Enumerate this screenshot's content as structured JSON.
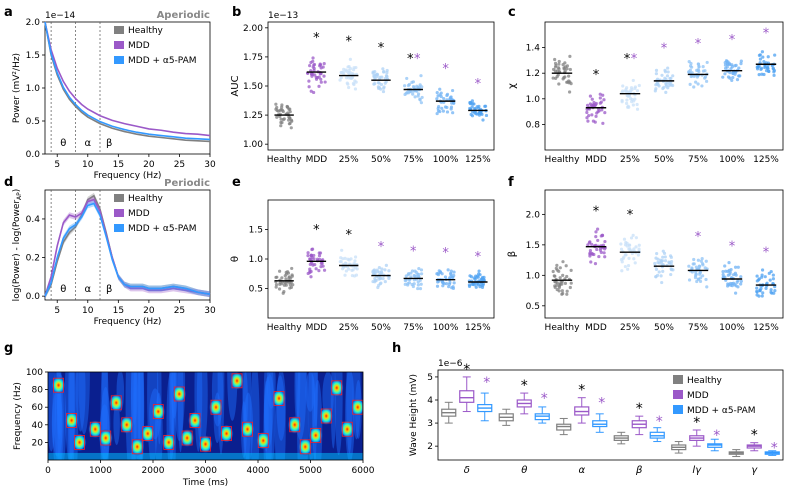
{
  "colors": {
    "healthy": "#808080",
    "mdd": "#9b59c8",
    "pam": "#3399ff",
    "star_black": "#000000",
    "star_purple": "#9b59c8",
    "pam_shades": [
      "#c8e0f8",
      "#aed2f6",
      "#8fc3f5",
      "#6fb2f4",
      "#4ea1f2"
    ]
  },
  "chart_data": [
    {
      "panel": "a",
      "type": "line",
      "title": "Aperiodic",
      "xlabel": "Frequency (Hz)",
      "ylabel": "Power (mV²/Hz)",
      "offset_text": "1e−14",
      "xlim": [
        3,
        30
      ],
      "ylim": [
        0,
        2.0
      ],
      "xticks": [
        5,
        10,
        15,
        20,
        25,
        30
      ],
      "yticks": [
        0.0,
        0.5,
        1.0,
        1.5,
        2.0
      ],
      "band_lines": [
        4,
        8,
        12
      ],
      "band_labels": [
        "θ",
        "α",
        "β"
      ],
      "legend": [
        "Healthy",
        "MDD",
        "MDD + α5-PAM"
      ],
      "series": [
        {
          "name": "Healthy",
          "x": [
            3,
            4,
            5,
            6,
            7,
            8,
            9,
            10,
            12,
            14,
            16,
            18,
            20,
            22,
            24,
            26,
            28,
            30
          ],
          "y": [
            2.0,
            1.5,
            1.2,
            0.98,
            0.83,
            0.72,
            0.63,
            0.56,
            0.46,
            0.39,
            0.34,
            0.3,
            0.27,
            0.25,
            0.23,
            0.21,
            0.2,
            0.19
          ]
        },
        {
          "name": "MDD",
          "x": [
            3,
            4,
            5,
            6,
            7,
            8,
            9,
            10,
            12,
            14,
            16,
            18,
            20,
            22,
            24,
            26,
            28,
            30
          ],
          "y": [
            2.0,
            1.58,
            1.3,
            1.1,
            0.95,
            0.84,
            0.75,
            0.68,
            0.58,
            0.51,
            0.46,
            0.42,
            0.38,
            0.36,
            0.33,
            0.31,
            0.3,
            0.28
          ]
        },
        {
          "name": "MDD + α5-PAM",
          "x": [
            3,
            4,
            5,
            6,
            7,
            8,
            9,
            10,
            12,
            14,
            16,
            18,
            20,
            22,
            24,
            26,
            28,
            30
          ],
          "y": [
            2.0,
            1.52,
            1.23,
            1.01,
            0.86,
            0.75,
            0.66,
            0.59,
            0.49,
            0.42,
            0.37,
            0.33,
            0.3,
            0.28,
            0.26,
            0.24,
            0.23,
            0.22
          ]
        }
      ]
    },
    {
      "panel": "b",
      "type": "scatter",
      "ylabel": "AUC",
      "offset_text": "1e−13",
      "categories": [
        "Healthy",
        "MDD",
        "25%",
        "50%",
        "75%",
        "100%",
        "125%"
      ],
      "ylim": [
        0.95,
        2.05
      ],
      "yticks": [
        1.0,
        1.25,
        1.5,
        1.75,
        2.0
      ],
      "means": [
        1.25,
        1.62,
        1.59,
        1.55,
        1.47,
        1.37,
        1.29
      ],
      "spreads": [
        0.13,
        0.14,
        0.14,
        0.13,
        0.12,
        0.13,
        0.1
      ],
      "star_black": [
        false,
        true,
        true,
        true,
        true,
        false,
        false
      ],
      "star_purple": [
        false,
        false,
        false,
        false,
        true,
        true,
        true
      ]
    },
    {
      "panel": "c",
      "type": "scatter",
      "ylabel": "χ",
      "categories": [
        "Healthy",
        "MDD",
        "25%",
        "50%",
        "75%",
        "100%",
        "125%"
      ],
      "ylim": [
        0.6,
        1.6
      ],
      "yticks": [
        0.8,
        1.0,
        1.2,
        1.4
      ],
      "means": [
        1.2,
        0.93,
        1.04,
        1.14,
        1.19,
        1.22,
        1.27
      ],
      "spreads": [
        0.14,
        0.12,
        0.13,
        0.12,
        0.11,
        0.11,
        0.11
      ],
      "star_black": [
        false,
        true,
        true,
        false,
        false,
        false,
        false
      ],
      "star_purple": [
        false,
        false,
        true,
        true,
        true,
        true,
        true
      ]
    },
    {
      "panel": "d",
      "type": "line",
      "title": "Periodic",
      "xlabel": "Frequency (Hz)",
      "ylabel": "log(Power) - log(Power_AP)",
      "ylabel_main": "log(Power) - log(Power",
      "ylabel_sub": "AP",
      "ylabel_end": ")",
      "xlim": [
        3,
        30
      ],
      "ylim": [
        -0.02,
        0.55
      ],
      "xticks": [
        5,
        10,
        15,
        20,
        25,
        30
      ],
      "yticks": [
        0.0,
        0.2,
        0.4
      ],
      "band_lines": [
        4,
        8,
        12
      ],
      "band_labels": [
        "θ",
        "α",
        "β"
      ],
      "legend": [
        "Healthy",
        "MDD",
        "MDD + α5-PAM"
      ],
      "series": [
        {
          "name": "Healthy",
          "x": [
            3,
            4,
            5,
            6,
            7,
            8,
            9,
            10,
            11,
            12,
            13,
            14,
            15,
            16,
            17,
            18,
            19,
            20,
            22,
            24,
            26,
            28,
            30
          ],
          "y": [
            0.0,
            0.06,
            0.18,
            0.28,
            0.33,
            0.36,
            0.42,
            0.5,
            0.52,
            0.45,
            0.33,
            0.2,
            0.1,
            0.06,
            0.05,
            0.05,
            0.05,
            0.04,
            0.04,
            0.05,
            0.04,
            0.02,
            0.01
          ]
        },
        {
          "name": "MDD",
          "x": [
            3,
            4,
            5,
            6,
            7,
            8,
            9,
            10,
            11,
            12,
            13,
            14,
            15,
            16,
            17,
            18,
            19,
            20,
            22,
            24,
            26,
            28,
            30
          ],
          "y": [
            0.0,
            0.1,
            0.26,
            0.38,
            0.42,
            0.41,
            0.43,
            0.49,
            0.5,
            0.44,
            0.32,
            0.2,
            0.1,
            0.06,
            0.04,
            0.04,
            0.04,
            0.03,
            0.03,
            0.04,
            0.03,
            0.02,
            0.01
          ]
        },
        {
          "name": "MDD + α5-PAM",
          "x": [
            3,
            4,
            5,
            6,
            7,
            8,
            9,
            10,
            11,
            12,
            13,
            14,
            15,
            16,
            17,
            18,
            19,
            20,
            22,
            24,
            26,
            28,
            30
          ],
          "y": [
            0.0,
            0.07,
            0.2,
            0.3,
            0.35,
            0.37,
            0.41,
            0.47,
            0.48,
            0.42,
            0.31,
            0.19,
            0.1,
            0.06,
            0.05,
            0.05,
            0.05,
            0.04,
            0.04,
            0.05,
            0.04,
            0.02,
            0.01
          ]
        }
      ]
    },
    {
      "panel": "e",
      "type": "scatter",
      "ylabel": "θ",
      "categories": [
        "Healthy",
        "MDD",
        "25%",
        "50%",
        "75%",
        "100%",
        "125%"
      ],
      "ylim": [
        0.0,
        2.0
      ],
      "yticks": [
        0.5,
        1.0,
        1.5
      ],
      "means": [
        0.63,
        0.96,
        0.89,
        0.72,
        0.67,
        0.65,
        0.61
      ],
      "spreads": [
        0.22,
        0.25,
        0.24,
        0.22,
        0.2,
        0.2,
        0.18
      ],
      "star_black": [
        false,
        true,
        true,
        false,
        false,
        false,
        false
      ],
      "star_purple": [
        false,
        false,
        false,
        true,
        true,
        true,
        true
      ]
    },
    {
      "panel": "f",
      "type": "scatter",
      "ylabel": "β",
      "categories": [
        "Healthy",
        "MDD",
        "25%",
        "50%",
        "75%",
        "100%",
        "125%"
      ],
      "ylim": [
        0.3,
        2.4
      ],
      "yticks": [
        0.5,
        1.0,
        1.5,
        2.0
      ],
      "means": [
        0.92,
        1.47,
        1.38,
        1.15,
        1.08,
        0.94,
        0.84
      ],
      "spreads": [
        0.3,
        0.28,
        0.3,
        0.28,
        0.26,
        0.25,
        0.25
      ],
      "star_black": [
        false,
        true,
        true,
        false,
        false,
        false,
        false
      ],
      "star_purple": [
        false,
        false,
        false,
        false,
        true,
        true,
        true
      ]
    },
    {
      "panel": "g",
      "type": "heatmap",
      "xlabel": "Time (ms)",
      "ylabel": "Frequency (Hz)",
      "xlim": [
        0,
        6000
      ],
      "ylim": [
        0,
        100
      ],
      "xticks": [
        0,
        1000,
        2000,
        3000,
        4000,
        5000,
        6000
      ],
      "yticks": [
        20,
        40,
        60,
        80,
        100
      ],
      "events": [
        {
          "t": 200,
          "f": 85
        },
        {
          "t": 450,
          "f": 45
        },
        {
          "t": 600,
          "f": 20
        },
        {
          "t": 900,
          "f": 35
        },
        {
          "t": 1100,
          "f": 25
        },
        {
          "t": 1300,
          "f": 65
        },
        {
          "t": 1500,
          "f": 40
        },
        {
          "t": 1700,
          "f": 15
        },
        {
          "t": 1900,
          "f": 30
        },
        {
          "t": 2100,
          "f": 55
        },
        {
          "t": 2300,
          "f": 20
        },
        {
          "t": 2500,
          "f": 75
        },
        {
          "t": 2650,
          "f": 25
        },
        {
          "t": 2800,
          "f": 45
        },
        {
          "t": 3000,
          "f": 18
        },
        {
          "t": 3200,
          "f": 60
        },
        {
          "t": 3400,
          "f": 30
        },
        {
          "t": 3600,
          "f": 90
        },
        {
          "t": 3800,
          "f": 35
        },
        {
          "t": 4100,
          "f": 22
        },
        {
          "t": 4400,
          "f": 70
        },
        {
          "t": 4700,
          "f": 40
        },
        {
          "t": 4900,
          "f": 15
        },
        {
          "t": 5100,
          "f": 28
        },
        {
          "t": 5300,
          "f": 50
        },
        {
          "t": 5500,
          "f": 82
        },
        {
          "t": 5700,
          "f": 35
        },
        {
          "t": 5900,
          "f": 60
        }
      ]
    },
    {
      "panel": "h",
      "type": "box",
      "ylabel": "Wave Height (mV)",
      "offset_text": "1e−6",
      "categories": [
        "δ",
        "θ",
        "α",
        "β",
        "lγ",
        "γ"
      ],
      "ylim": [
        1.4,
        5.3
      ],
      "yticks": [
        2,
        3,
        4,
        5
      ],
      "legend": [
        "Healthy",
        "MDD",
        "MDD + α5-PAM"
      ],
      "groups": [
        {
          "name": "Healthy",
          "boxes": [
            [
              3.0,
              3.3,
              3.45,
              3.6,
              3.9
            ],
            [
              2.9,
              3.1,
              3.25,
              3.4,
              3.6
            ],
            [
              2.5,
              2.7,
              2.85,
              2.95,
              3.2
            ],
            [
              2.1,
              2.25,
              2.35,
              2.45,
              2.6
            ],
            [
              1.7,
              1.85,
              1.95,
              2.05,
              2.2
            ],
            [
              1.55,
              1.65,
              1.7,
              1.75,
              1.85
            ]
          ]
        },
        {
          "name": "MDD",
          "boxes": [
            [
              3.5,
              3.9,
              4.1,
              4.4,
              5.0
            ],
            [
              3.4,
              3.7,
              3.85,
              4.0,
              4.3
            ],
            [
              3.0,
              3.35,
              3.5,
              3.7,
              4.1
            ],
            [
              2.5,
              2.8,
              2.95,
              3.1,
              3.3
            ],
            [
              2.0,
              2.25,
              2.35,
              2.45,
              2.7
            ],
            [
              1.8,
              1.92,
              2.0,
              2.05,
              2.15
            ]
          ]
        },
        {
          "name": "MDD + α5-PAM",
          "boxes": [
            [
              3.1,
              3.5,
              3.65,
              3.8,
              4.3
            ],
            [
              3.0,
              3.15,
              3.3,
              3.4,
              3.7
            ],
            [
              2.6,
              2.85,
              2.95,
              3.1,
              3.4
            ],
            [
              2.2,
              2.35,
              2.45,
              2.6,
              2.8
            ],
            [
              1.8,
              1.95,
              2.05,
              2.1,
              2.3
            ],
            [
              1.6,
              1.65,
              1.7,
              1.75,
              1.8
            ]
          ]
        }
      ],
      "star_black": [
        true,
        true,
        true,
        true,
        true,
        true
      ],
      "star_purple": [
        true,
        true,
        true,
        true,
        true,
        true
      ]
    }
  ],
  "panel_labels": [
    "a",
    "b",
    "c",
    "d",
    "e",
    "f",
    "g",
    "h"
  ],
  "star_symbol": "*"
}
